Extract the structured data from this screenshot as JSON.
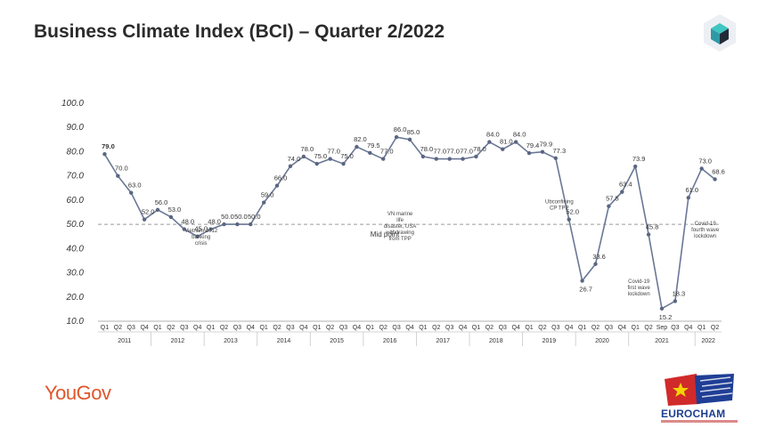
{
  "title": "Business Climate Index (BCI) – Quarter 2/2022",
  "logos": {
    "left": "YouGov",
    "right": "EUROCHAM",
    "cube_icon": "cube-icon"
  },
  "colors": {
    "line": "#6a7795",
    "marker": "#5a6682",
    "text": "#333333",
    "midline": "#9a9a9a",
    "yougov": "#e0552b",
    "eurocham": "#1d3f8f"
  },
  "chart_data": {
    "type": "line",
    "title": "Business Climate Index (BCI) – Quarter 2/2022",
    "ylim": [
      10,
      100
    ],
    "y_ticks": [
      "10.0",
      "20.0",
      "30.0",
      "40.0",
      "50.0",
      "60.0",
      "70.0",
      "80.0",
      "90.0",
      "100.0"
    ],
    "grid": false,
    "reference_line": {
      "value": 50,
      "label": "Mid point"
    },
    "x": [
      "Q1",
      "Q2",
      "Q3",
      "Q4",
      "Q1",
      "Q2",
      "Q3",
      "Q4",
      "Q1",
      "Q2",
      "Q3",
      "Q4",
      "Q1",
      "Q2",
      "Q3",
      "Q4",
      "Q1",
      "Q2",
      "Q3",
      "Q4",
      "Q1",
      "Q2",
      "Q3",
      "Q4",
      "Q1",
      "Q2",
      "Q3",
      "Q4",
      "Q1",
      "Q2",
      "Q3",
      "Q4",
      "Q1",
      "Q2",
      "Q3",
      "Q4",
      "Q1",
      "Q2",
      "Q3",
      "Q4",
      "Q1",
      "Q2",
      "Sep",
      "Q3",
      "Q4",
      "Q1",
      "Q2"
    ],
    "years": [
      {
        "label": "2011",
        "count": 4
      },
      {
        "label": "2012",
        "count": 4
      },
      {
        "label": "2013",
        "count": 4
      },
      {
        "label": "2014",
        "count": 4
      },
      {
        "label": "2015",
        "count": 4
      },
      {
        "label": "2016",
        "count": 4
      },
      {
        "label": "2017",
        "count": 4
      },
      {
        "label": "2018",
        "count": 4
      },
      {
        "label": "2019",
        "count": 4
      },
      {
        "label": "2020",
        "count": 4
      },
      {
        "label": "2021",
        "count": 5
      },
      {
        "label": "2022",
        "count": 2
      }
    ],
    "values": [
      79.0,
      70.0,
      63.0,
      52.0,
      56.0,
      53.0,
      48.0,
      45.0,
      48.0,
      50.0,
      50.0,
      50.0,
      59.0,
      66.0,
      74.0,
      78.0,
      75.0,
      77.0,
      75.0,
      82.0,
      79.5,
      77.0,
      86.0,
      85.0,
      78.0,
      77.0,
      77.0,
      77.0,
      78.0,
      84.0,
      81.0,
      84.0,
      79.4,
      79.9,
      77.3,
      52.0,
      26.7,
      33.6,
      57.5,
      63.4,
      73.9,
      45.8,
      15.2,
      18.3,
      61.0,
      73.0,
      68.6
    ],
    "labels": [
      "79.0",
      "70.0",
      "63.0",
      "52.0",
      "56.0",
      "53.0",
      "48.0",
      "45.0",
      "48.0",
      "50.0",
      "50.0",
      "50.0",
      "59.0",
      "66.0",
      "74.0",
      "78.0",
      "75.0",
      "77.0",
      "75.0",
      "82.0",
      "79.5",
      "77.0",
      "86.0",
      "85.0",
      "78.0",
      "77.0",
      "77.0",
      "77.0",
      "78.0",
      "84.0",
      "81.0",
      "84.0",
      "79.4",
      "79.9",
      "77.3",
      "52.0",
      "26.7",
      "33.6",
      "57.5",
      "63.4",
      "73.9",
      "45.8",
      "15.2",
      "18.3",
      "61.0",
      "73.0",
      "68.6"
    ],
    "annotations": [
      {
        "text": "Vietnam 2012 banking crisis",
        "x_index": 7
      },
      {
        "text": "VN marine life disaster, USA withdrawing from TPP",
        "x_index": 22
      },
      {
        "text": "Ubconfining CP TPP",
        "x_index": 34
      },
      {
        "text": "Covid-19 first wave lockdown",
        "x_index": 40
      },
      {
        "text": "Covid-19 fourth wave lockdown",
        "x_index": 45
      }
    ]
  }
}
